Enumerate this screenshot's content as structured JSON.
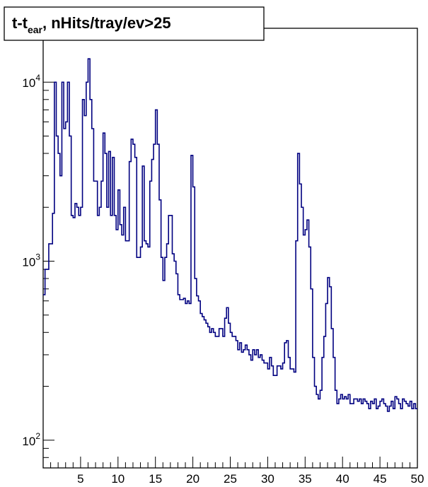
{
  "chart_data": {
    "type": "step-histogram",
    "title": {
      "base": "t-t",
      "subscript": "ear",
      "rest": ", nHits/tray/ev>25"
    },
    "xlabel": "",
    "ylabel": "",
    "xlim": [
      0,
      50
    ],
    "ylim": [
      70,
      20000
    ],
    "y_scale": "log",
    "grid": false,
    "line_color": "#000080",
    "x_ticks": [
      5,
      10,
      15,
      20,
      25,
      30,
      35,
      40,
      45,
      50
    ],
    "x_tick_labels": [
      "5",
      "10",
      "15",
      "20",
      "25",
      "30",
      "35",
      "40",
      "45",
      "50"
    ],
    "y_ticks": [
      {
        "value": 100,
        "base": "10",
        "exp": "2"
      },
      {
        "value": 1000,
        "base": "10",
        "exp": "3"
      },
      {
        "value": 10000,
        "base": "10",
        "exp": "4"
      }
    ],
    "bin_width": 0.25,
    "values": [
      650,
      900,
      900,
      1250,
      1250,
      1850,
      10000,
      5000,
      4000,
      3000,
      10000,
      5500,
      6000,
      10000,
      5000,
      1800,
      1750,
      2100,
      2000,
      1800,
      2000,
      8000,
      6500,
      10000,
      13500,
      8000,
      5500,
      2800,
      2800,
      1800,
      2000,
      2800,
      5200,
      4000,
      2000,
      4100,
      1800,
      3800,
      1800,
      1500,
      2500,
      1600,
      1400,
      2000,
      1300,
      1300,
      3600,
      4800,
      4500,
      3800,
      1050,
      1050,
      1200,
      3400,
      1300,
      1250,
      1200,
      2800,
      3700,
      4500,
      7000,
      4500,
      2200,
      1050,
      780,
      1050,
      1250,
      1800,
      1800,
      1100,
      1000,
      850,
      650,
      610,
      610,
      620,
      580,
      600,
      580,
      3900,
      2600,
      800,
      640,
      600,
      510,
      490,
      470,
      450,
      430,
      400,
      420,
      400,
      380,
      380,
      420,
      420,
      380,
      480,
      550,
      450,
      400,
      380,
      380,
      360,
      320,
      350,
      310,
      320,
      340,
      320,
      300,
      280,
      320,
      300,
      320,
      290,
      300,
      280,
      270,
      270,
      250,
      290,
      260,
      230,
      230,
      260,
      260,
      250,
      270,
      350,
      360,
      290,
      250,
      250,
      240,
      1300,
      4000,
      2700,
      2000,
      1400,
      1500,
      1700,
      1200,
      700,
      290,
      200,
      180,
      170,
      190,
      290,
      380,
      580,
      810,
      720,
      420,
      290,
      190,
      160,
      170,
      180,
      170,
      175,
      170,
      180,
      160,
      160,
      170,
      170,
      165,
      170,
      160,
      170,
      165,
      160,
      150,
      165,
      160,
      170,
      150,
      155,
      165,
      170,
      160,
      155,
      145,
      155,
      165,
      150,
      175,
      170,
      160,
      150,
      170,
      165,
      160,
      155,
      165,
      150,
      160,
      150
    ]
  }
}
